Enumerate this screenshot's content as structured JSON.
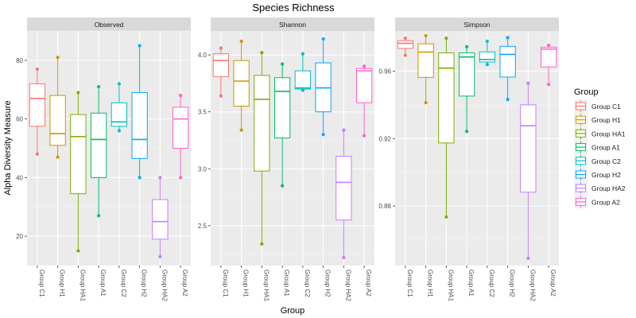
{
  "title": "Species Richness",
  "xlabel": "Group",
  "ylabel": "Alpha Diversity Measure",
  "legend": {
    "title": "Group",
    "entries": [
      "Group C1",
      "Group H1",
      "Group HA1",
      "Group A1",
      "Group C2",
      "Group H2",
      "Group HA2",
      "Group A2"
    ],
    "colors": [
      "#F8766D",
      "#CD9600",
      "#7CAE00",
      "#00BE67",
      "#00BFC4",
      "#00A9FF",
      "#C77CFF",
      "#FF61CC"
    ]
  },
  "chart_data": {
    "type": "boxplot",
    "title": "Species Richness",
    "xlabel": "Group",
    "ylabel": "Alpha Diversity Measure",
    "categories": [
      "Group C1",
      "Group H1",
      "Group HA1",
      "Group A1",
      "Group C2",
      "Group H2",
      "Group HA2",
      "Group A2"
    ],
    "legend_position": "right",
    "grid": true,
    "panels": [
      {
        "name": "Observed",
        "ylim": [
          10,
          90
        ],
        "yticks": [
          20,
          40,
          60,
          80
        ],
        "ytick_labels": [
          "20",
          "40",
          "60",
          "80"
        ],
        "boxes": [
          {
            "min": 48,
            "q1": 57.5,
            "median": 67,
            "q3": 72,
            "max": 77
          },
          {
            "min": 47,
            "q1": 51,
            "median": 55,
            "q3": 68,
            "max": 81
          },
          {
            "min": 15,
            "q1": 34.5,
            "median": 54,
            "q3": 61.5,
            "max": 69
          },
          {
            "min": 27,
            "q1": 40,
            "median": 53,
            "q3": 62,
            "max": 71
          },
          {
            "min": 56,
            "q1": 57.5,
            "median": 59,
            "q3": 65.5,
            "max": 72
          },
          {
            "min": 40,
            "q1": 46.5,
            "median": 53,
            "q3": 69,
            "max": 85
          },
          {
            "min": 13,
            "q1": 19,
            "median": 25,
            "q3": 32.5,
            "max": 40
          },
          {
            "min": 40,
            "q1": 50,
            "median": 60,
            "q3": 64,
            "max": 68
          }
        ]
      },
      {
        "name": "Shannon",
        "ylim": [
          2.15,
          4.21
        ],
        "yticks": [
          2.5,
          3.0,
          3.5,
          4.0
        ],
        "ytick_labels": [
          "2.5",
          "3.0",
          "3.5",
          "4.0"
        ],
        "boxes": [
          {
            "min": 3.64,
            "q1": 3.81,
            "median": 3.95,
            "q3": 4.01,
            "max": 4.06
          },
          {
            "min": 3.34,
            "q1": 3.55,
            "median": 3.77,
            "q3": 3.95,
            "max": 4.12
          },
          {
            "min": 2.34,
            "q1": 2.98,
            "median": 3.61,
            "q3": 3.82,
            "max": 4.02
          },
          {
            "min": 2.85,
            "q1": 3.27,
            "median": 3.68,
            "q3": 3.8,
            "max": 3.92
          },
          {
            "min": 3.69,
            "q1": 3.7,
            "median": 3.71,
            "q3": 3.86,
            "max": 4.01
          },
          {
            "min": 3.3,
            "q1": 3.5,
            "median": 3.71,
            "q3": 3.93,
            "max": 4.14
          },
          {
            "min": 2.22,
            "q1": 2.55,
            "median": 2.88,
            "q3": 3.11,
            "max": 3.34
          },
          {
            "min": 3.29,
            "q1": 3.58,
            "median": 3.86,
            "q3": 3.88,
            "max": 3.9
          }
        ]
      },
      {
        "name": "Simpson",
        "ylim": [
          0.8447,
          0.9838
        ],
        "yticks": [
          0.88,
          0.92,
          0.96
        ],
        "ytick_labels": [
          "0.88",
          "0.92",
          "0.96"
        ],
        "boxes": [
          {
            "min": 0.9694,
            "q1": 0.9735,
            "median": 0.9765,
            "q3": 0.978,
            "max": 0.9795
          },
          {
            "min": 0.9413,
            "q1": 0.9563,
            "median": 0.9713,
            "q3": 0.9762,
            "max": 0.981
          },
          {
            "min": 0.8735,
            "q1": 0.9174,
            "median": 0.9618,
            "q3": 0.9708,
            "max": 0.9795
          },
          {
            "min": 0.9242,
            "q1": 0.9452,
            "median": 0.9684,
            "q3": 0.9708,
            "max": 0.9745
          },
          {
            "min": 0.9639,
            "q1": 0.9654,
            "median": 0.9669,
            "q3": 0.9714,
            "max": 0.9777
          },
          {
            "min": 0.9432,
            "q1": 0.9565,
            "median": 0.9699,
            "q3": 0.9747,
            "max": 0.9799
          },
          {
            "min": 0.849,
            "q1": 0.8882,
            "median": 0.9276,
            "q3": 0.94,
            "max": 0.9528
          },
          {
            "min": 0.9521,
            "q1": 0.9625,
            "median": 0.9731,
            "q3": 0.9742,
            "max": 0.9753
          }
        ]
      }
    ]
  }
}
